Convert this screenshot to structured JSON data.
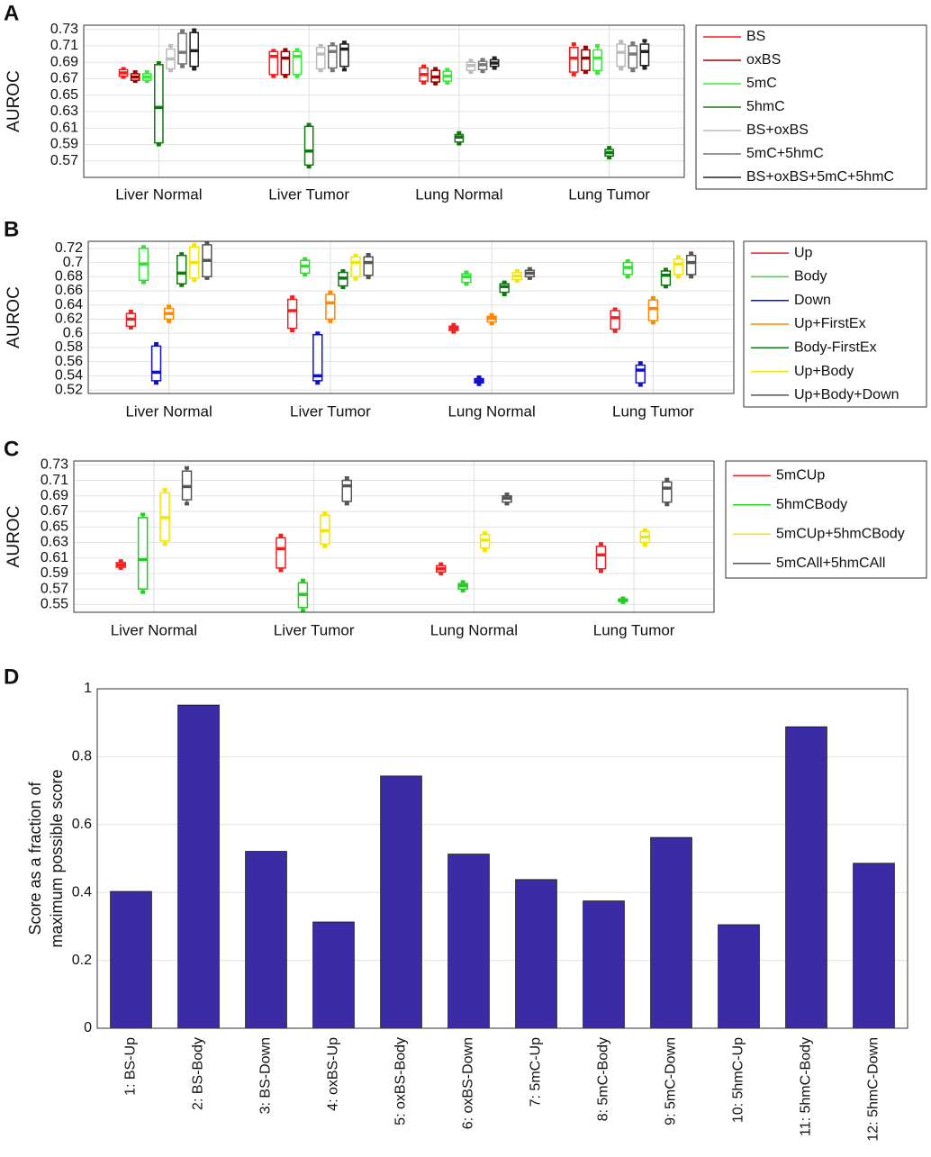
{
  "chart_data": [
    {
      "type": "box",
      "label": "A",
      "ylabel": "AUROC",
      "categories": [
        "Liver Normal",
        "Liver Tumor",
        "Lung Normal",
        "Lung Tumor"
      ],
      "ylim": [
        0.55,
        0.735
      ],
      "yticks": [
        0.57,
        0.59,
        0.61,
        0.63,
        0.65,
        0.67,
        0.69,
        0.71,
        0.73
      ],
      "grid": true,
      "legend": "right",
      "series": [
        {
          "name": "BS",
          "color": "#ff1a1a",
          "values": [
            [
              0.672,
              0.673,
              0.677,
              0.681,
              0.682
            ],
            [
              0.673,
              0.675,
              0.697,
              0.703,
              0.704
            ],
            [
              0.665,
              0.667,
              0.675,
              0.683,
              0.685
            ],
            [
              0.675,
              0.678,
              0.695,
              0.708,
              0.712
            ]
          ]
        },
        {
          "name": "oxBS",
          "color": "#a00000",
          "values": [
            [
              0.667,
              0.668,
              0.672,
              0.676,
              0.678
            ],
            [
              0.673,
              0.675,
              0.695,
              0.703,
              0.705
            ],
            [
              0.664,
              0.666,
              0.672,
              0.68,
              0.682
            ],
            [
              0.678,
              0.68,
              0.695,
              0.705,
              0.708
            ]
          ]
        },
        {
          "name": "5mC",
          "color": "#33ee33",
          "values": [
            [
              0.667,
              0.668,
              0.672,
              0.676,
              0.678
            ],
            [
              0.673,
              0.675,
              0.697,
              0.703,
              0.705
            ],
            [
              0.665,
              0.667,
              0.673,
              0.679,
              0.681
            ],
            [
              0.677,
              0.68,
              0.695,
              0.705,
              0.71
            ]
          ]
        },
        {
          "name": "5hmC",
          "color": "#117711",
          "values": [
            [
              0.59,
              0.592,
              0.635,
              0.687,
              0.689
            ],
            [
              0.563,
              0.565,
              0.582,
              0.612,
              0.614
            ],
            [
              0.591,
              0.593,
              0.599,
              0.602,
              0.604
            ],
            [
              0.574,
              0.576,
              0.58,
              0.584,
              0.586
            ]
          ]
        },
        {
          "name": "BS+oxBS",
          "color": "#bbbbbb",
          "values": [
            [
              0.68,
              0.682,
              0.694,
              0.706,
              0.71
            ],
            [
              0.68,
              0.682,
              0.7,
              0.708,
              0.71
            ],
            [
              0.678,
              0.68,
              0.686,
              0.69,
              0.692
            ],
            [
              0.682,
              0.685,
              0.702,
              0.712,
              0.715
            ]
          ]
        },
        {
          "name": "5mC+5hmC",
          "color": "#777777",
          "values": [
            [
              0.685,
              0.688,
              0.702,
              0.725,
              0.728
            ],
            [
              0.68,
              0.683,
              0.703,
              0.71,
              0.712
            ],
            [
              0.679,
              0.681,
              0.687,
              0.691,
              0.693
            ],
            [
              0.68,
              0.683,
              0.7,
              0.71,
              0.713
            ]
          ]
        },
        {
          "name": "BS+oxBS+5mC+5hmC",
          "color": "#222222",
          "values": [
            [
              0.682,
              0.685,
              0.704,
              0.726,
              0.729
            ],
            [
              0.681,
              0.685,
              0.706,
              0.712,
              0.714
            ],
            [
              0.683,
              0.685,
              0.689,
              0.693,
              0.695
            ],
            [
              0.683,
              0.686,
              0.703,
              0.712,
              0.716
            ]
          ]
        }
      ]
    },
    {
      "type": "box",
      "label": "B",
      "ylabel": "AUROC",
      "categories": [
        "Liver Normal",
        "Liver Tumor",
        "Lung Normal",
        "Lung Tumor"
      ],
      "ylim": [
        0.515,
        0.73
      ],
      "yticks": [
        0.52,
        0.54,
        0.56,
        0.58,
        0.6,
        0.62,
        0.64,
        0.66,
        0.68,
        0.7,
        0.72
      ],
      "grid": true,
      "legend": "right",
      "series": [
        {
          "name": "Up",
          "color": "#ee2222",
          "values": [
            [
              0.608,
              0.61,
              0.62,
              0.628,
              0.631
            ],
            [
              0.604,
              0.607,
              0.632,
              0.648,
              0.651
            ],
            [
              0.602,
              0.604,
              0.607,
              0.61,
              0.612
            ],
            [
              0.603,
              0.606,
              0.622,
              0.632,
              0.634
            ]
          ]
        },
        {
          "name": "Body",
          "color": "#33dd33",
          "values": [
            [
              0.672,
              0.675,
              0.698,
              0.72,
              0.722
            ],
            [
              0.683,
              0.685,
              0.695,
              0.703,
              0.705
            ],
            [
              0.67,
              0.672,
              0.68,
              0.684,
              0.686
            ],
            [
              0.68,
              0.683,
              0.693,
              0.7,
              0.702
            ]
          ]
        },
        {
          "name": "Down",
          "color": "#1111cc",
          "values": [
            [
              0.53,
              0.533,
              0.545,
              0.582,
              0.585
            ],
            [
              0.53,
              0.533,
              0.54,
              0.598,
              0.6
            ],
            [
              0.528,
              0.53,
              0.533,
              0.536,
              0.538
            ],
            [
              0.527,
              0.53,
              0.548,
              0.555,
              0.558
            ]
          ]
        },
        {
          "name": "Up+FirstEx",
          "color": "#ff8800",
          "values": [
            [
              0.617,
              0.62,
              0.628,
              0.635,
              0.638
            ],
            [
              0.617,
              0.62,
              0.643,
              0.655,
              0.658
            ],
            [
              0.614,
              0.616,
              0.621,
              0.624,
              0.626
            ],
            [
              0.615,
              0.618,
              0.635,
              0.647,
              0.65
            ]
          ]
        },
        {
          "name": "Body-FirstEx",
          "color": "#117711",
          "values": [
            [
              0.668,
              0.67,
              0.685,
              0.71,
              0.712
            ],
            [
              0.665,
              0.667,
              0.678,
              0.686,
              0.688
            ],
            [
              0.655,
              0.658,
              0.666,
              0.67,
              0.672
            ],
            [
              0.666,
              0.668,
              0.682,
              0.688,
              0.69
            ]
          ]
        },
        {
          "name": "Up+Body",
          "color": "#f5e600",
          "values": [
            [
              0.675,
              0.678,
              0.7,
              0.722,
              0.725
            ],
            [
              0.677,
              0.68,
              0.7,
              0.708,
              0.71
            ],
            [
              0.674,
              0.676,
              0.681,
              0.686,
              0.688
            ],
            [
              0.68,
              0.683,
              0.698,
              0.705,
              0.708
            ]
          ]
        },
        {
          "name": "Up+Body+Down",
          "color": "#555555",
          "values": [
            [
              0.678,
              0.68,
              0.703,
              0.725,
              0.727
            ],
            [
              0.679,
              0.682,
              0.7,
              0.708,
              0.711
            ],
            [
              0.678,
              0.68,
              0.685,
              0.689,
              0.691
            ],
            [
              0.68,
              0.683,
              0.7,
              0.71,
              0.713
            ]
          ]
        }
      ]
    },
    {
      "type": "box",
      "label": "C",
      "ylabel": "AUROC",
      "categories": [
        "Liver Normal",
        "Liver Tumor",
        "Lung Normal",
        "Lung Tumor"
      ],
      "ylim": [
        0.54,
        0.735
      ],
      "yticks": [
        0.55,
        0.57,
        0.59,
        0.61,
        0.63,
        0.65,
        0.67,
        0.69,
        0.71,
        0.73
      ],
      "grid": true,
      "legend": "right",
      "series": [
        {
          "name": "5mCUp",
          "color": "#ee2222",
          "values": [
            [
              0.597,
              0.598,
              0.601,
              0.604,
              0.606
            ],
            [
              0.594,
              0.597,
              0.622,
              0.636,
              0.639
            ],
            [
              0.59,
              0.592,
              0.596,
              0.6,
              0.602
            ],
            [
              0.593,
              0.596,
              0.614,
              0.625,
              0.628
            ]
          ]
        },
        {
          "name": "5hmCBody",
          "color": "#22cc22",
          "values": [
            [
              0.566,
              0.57,
              0.608,
              0.662,
              0.666
            ],
            [
              0.542,
              0.546,
              0.563,
              0.578,
              0.581
            ],
            [
              0.568,
              0.57,
              0.574,
              0.577,
              0.579
            ],
            [
              0.553,
              0.554,
              0.556,
              0.557,
              0.558
            ]
          ]
        },
        {
          "name": "5mCUp+5hmCBody",
          "color": "#f5e600",
          "values": [
            [
              0.628,
              0.632,
              0.662,
              0.694,
              0.698
            ],
            [
              0.625,
              0.628,
              0.645,
              0.665,
              0.668
            ],
            [
              0.62,
              0.623,
              0.633,
              0.64,
              0.642
            ],
            [
              0.627,
              0.63,
              0.637,
              0.644,
              0.646
            ]
          ]
        },
        {
          "name": "5mCAll+5hmCAll",
          "color": "#555555",
          "values": [
            [
              0.68,
              0.685,
              0.702,
              0.722,
              0.726
            ],
            [
              0.68,
              0.683,
              0.703,
              0.71,
              0.713
            ],
            [
              0.68,
              0.682,
              0.687,
              0.69,
              0.692
            ],
            [
              0.679,
              0.682,
              0.7,
              0.708,
              0.711
            ]
          ]
        }
      ]
    },
    {
      "type": "bar",
      "label": "D",
      "ylabel": [
        "Score as a fraction of",
        "maximum possible score"
      ],
      "categories": [
        "1: BS-Up",
        "2: BS-Body",
        "3: BS-Down",
        "4: oxBS-Up",
        "5: oxBS-Body",
        "6: oxBS-Down",
        "7: 5mC-Up",
        "8: 5mC-Body",
        "9: 5mC-Down",
        "10: 5hmC-Up",
        "11: 5hmC-Body",
        "12: 5hmC-Down"
      ],
      "values": [
        0.403,
        0.952,
        0.521,
        0.313,
        0.743,
        0.513,
        0.438,
        0.375,
        0.562,
        0.305,
        0.888,
        0.486
      ],
      "color": "#3b2ca6",
      "ylim": [
        0,
        1
      ],
      "yticks": [
        0,
        0.2,
        0.4,
        0.6,
        0.8,
        1
      ],
      "grid": true
    }
  ]
}
